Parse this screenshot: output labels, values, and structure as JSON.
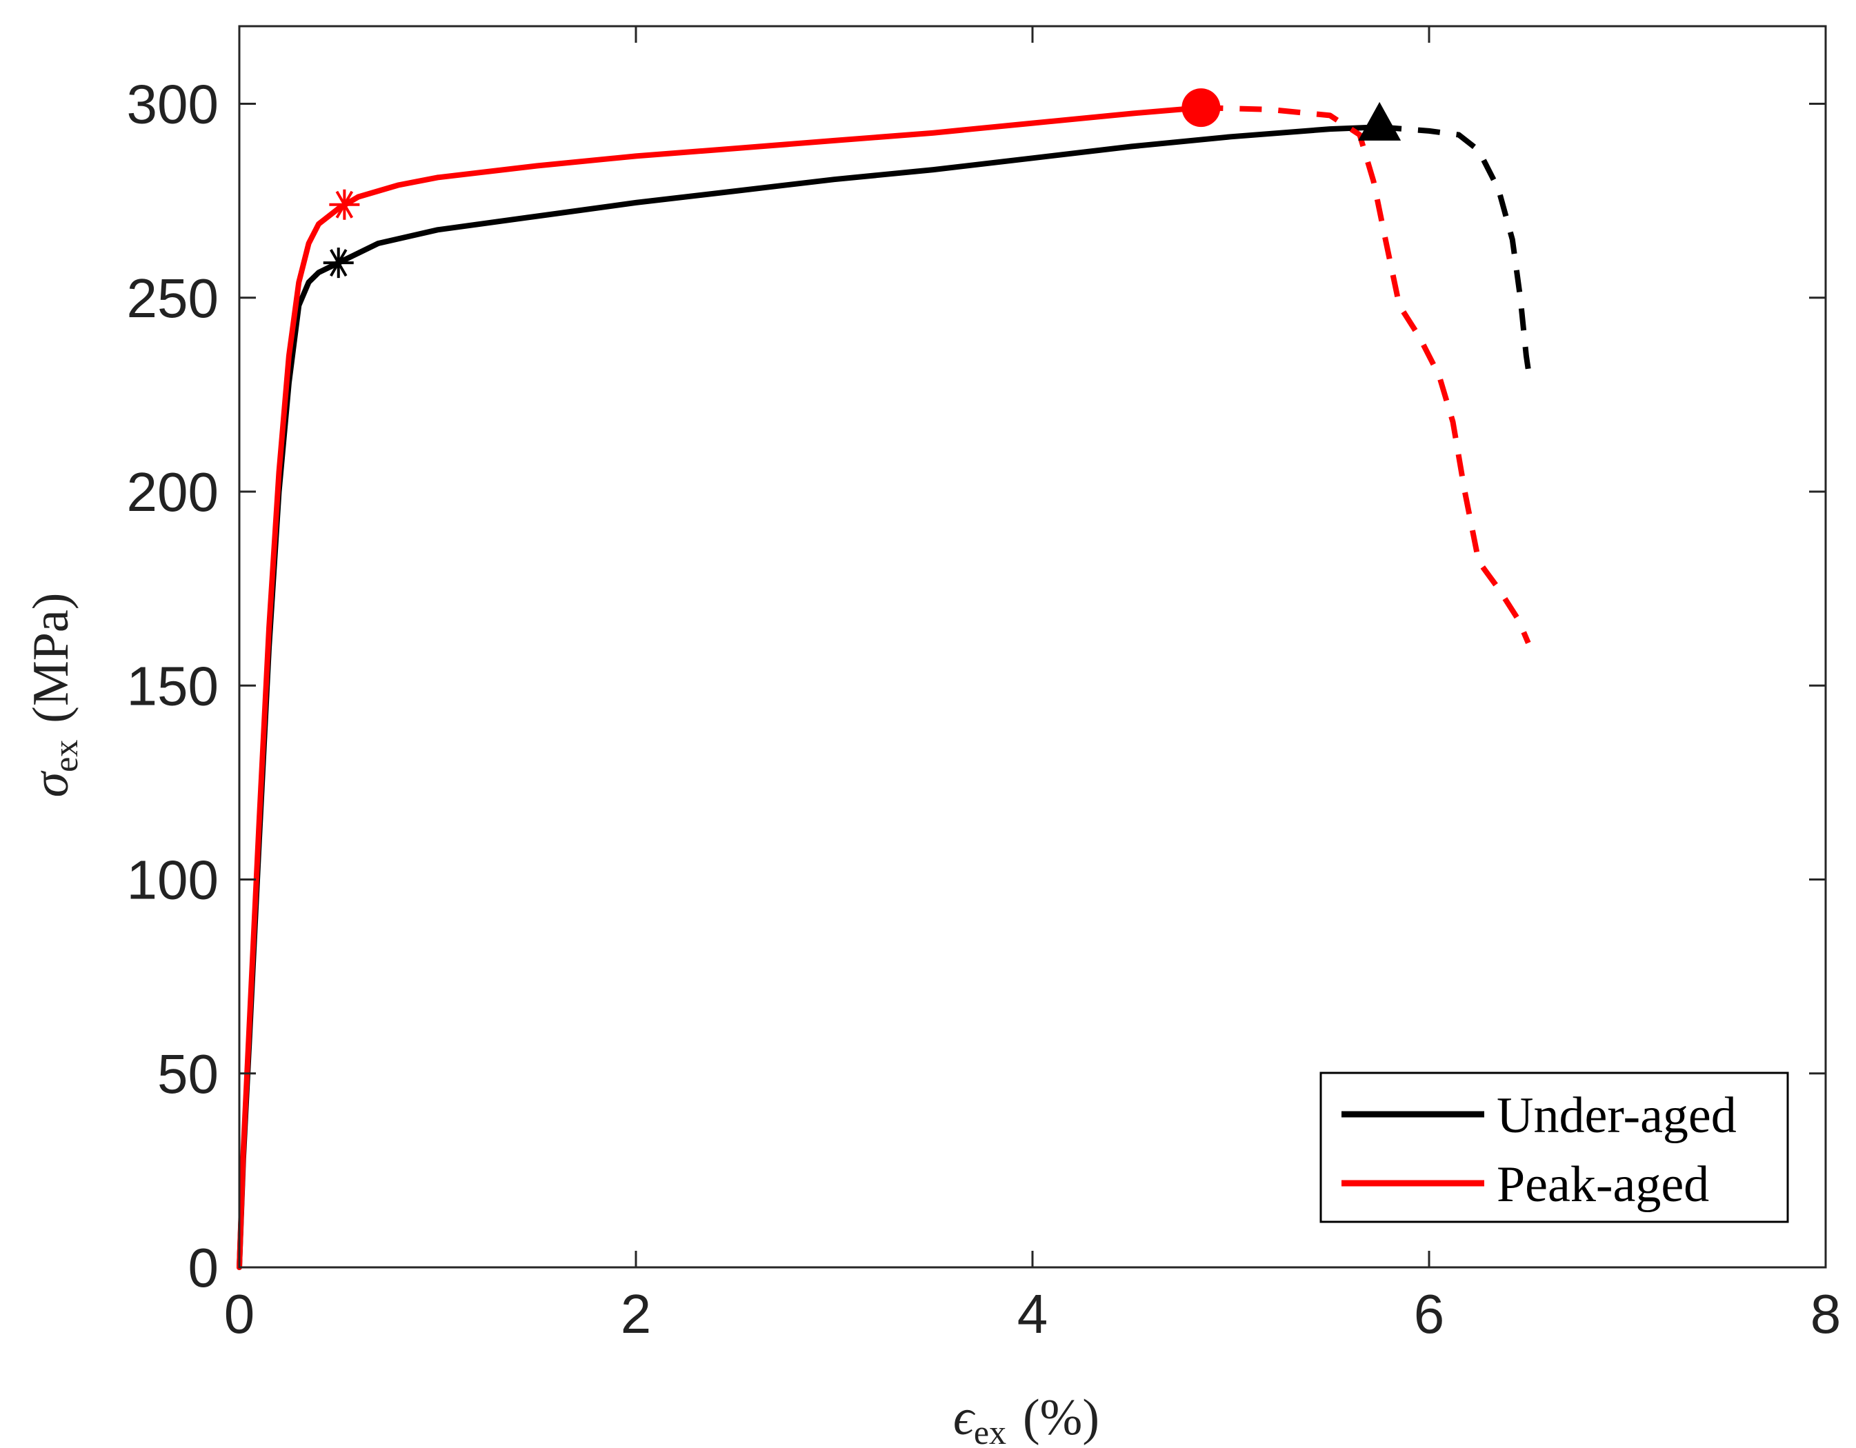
{
  "chart_data": {
    "type": "line",
    "xlabel": {
      "symbol": "ϵ",
      "subscript": "ex",
      "unit": "(%)"
    },
    "ylabel": {
      "symbol": "σ",
      "subscript": "ex",
      "unit": "(MPa)"
    },
    "xlim": [
      0,
      8
    ],
    "ylim": [
      0,
      320
    ],
    "xticks": [
      0,
      2,
      4,
      6,
      8
    ],
    "yticks": [
      0,
      50,
      100,
      150,
      200,
      250,
      300
    ],
    "grid": false,
    "legend_position": "bottom-right",
    "series": [
      {
        "name": "Under-aged",
        "color": "#000000",
        "solid": [
          [
            0,
            0
          ],
          [
            0.02,
            28
          ],
          [
            0.05,
            58
          ],
          [
            0.1,
            110
          ],
          [
            0.15,
            160
          ],
          [
            0.2,
            200
          ],
          [
            0.25,
            228
          ],
          [
            0.3,
            248
          ],
          [
            0.35,
            254
          ],
          [
            0.4,
            256.5
          ],
          [
            0.5,
            259
          ],
          [
            0.7,
            264
          ],
          [
            1.0,
            267.5
          ],
          [
            1.5,
            271
          ],
          [
            2.0,
            274.5
          ],
          [
            2.5,
            277.5
          ],
          [
            3.0,
            280.5
          ],
          [
            3.5,
            283
          ],
          [
            4.0,
            286
          ],
          [
            4.5,
            289
          ],
          [
            5.0,
            291.5
          ],
          [
            5.5,
            293.5
          ],
          [
            5.75,
            294
          ]
        ],
        "dashed": [
          [
            5.75,
            294
          ],
          [
            6.0,
            293
          ],
          [
            6.15,
            292
          ],
          [
            6.25,
            288
          ],
          [
            6.35,
            278
          ],
          [
            6.42,
            265
          ],
          [
            6.46,
            250
          ],
          [
            6.49,
            235
          ],
          [
            6.5,
            231.5
          ]
        ],
        "markers": [
          {
            "shape": "asterisk",
            "x": 0.5,
            "y": 259
          },
          {
            "shape": "triangle",
            "x": 5.75,
            "y": 294.5
          }
        ]
      },
      {
        "name": "Peak-aged",
        "color": "#ff0000",
        "solid": [
          [
            0,
            0
          ],
          [
            0.02,
            30
          ],
          [
            0.05,
            62
          ],
          [
            0.1,
            115
          ],
          [
            0.15,
            165
          ],
          [
            0.2,
            205
          ],
          [
            0.25,
            235
          ],
          [
            0.3,
            254
          ],
          [
            0.35,
            264
          ],
          [
            0.4,
            269
          ],
          [
            0.5,
            273
          ],
          [
            0.6,
            276
          ],
          [
            0.8,
            279
          ],
          [
            1.0,
            281
          ],
          [
            1.5,
            284
          ],
          [
            2.0,
            286.5
          ],
          [
            2.5,
            288.5
          ],
          [
            3.0,
            290.5
          ],
          [
            3.5,
            292.5
          ],
          [
            4.0,
            295
          ],
          [
            4.5,
            297.5
          ],
          [
            4.85,
            299
          ]
        ],
        "dashed": [
          [
            4.85,
            299
          ],
          [
            5.2,
            298.5
          ],
          [
            5.5,
            297
          ],
          [
            5.65,
            292
          ],
          [
            5.72,
            280
          ],
          [
            5.78,
            265
          ],
          [
            5.85,
            248
          ],
          [
            5.95,
            240
          ],
          [
            6.05,
            230
          ],
          [
            6.12,
            218
          ],
          [
            6.18,
            200
          ],
          [
            6.25,
            182
          ],
          [
            6.35,
            175
          ],
          [
            6.45,
            167
          ],
          [
            6.5,
            161
          ]
        ],
        "markers": [
          {
            "shape": "asterisk",
            "x": 0.53,
            "y": 274
          },
          {
            "shape": "circle",
            "x": 4.85,
            "y": 299
          }
        ]
      }
    ]
  }
}
